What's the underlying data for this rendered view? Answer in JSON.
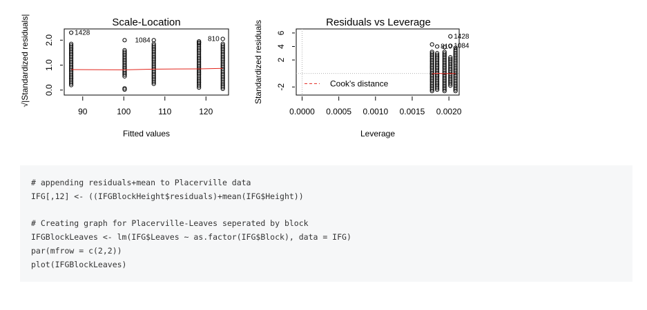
{
  "chart_data": [
    {
      "type": "scatter",
      "title": "Scale-Location",
      "xlabel": "Fitted values",
      "ylabel": "√|Standardized residuals|",
      "xlim": [
        85.5,
        125.5
      ],
      "ylim": [
        -0.2,
        2.45
      ],
      "x_ticks": [
        90,
        100,
        110,
        120
      ],
      "y_ticks": [
        0.0,
        1.0,
        2.0
      ],
      "y_tick_labels": [
        "0.0",
        "1.0",
        "2.0"
      ],
      "grid": false,
      "groups": [
        {
          "x": 87.2,
          "y_min": 0.2,
          "y_max": 1.85
        },
        {
          "x": 100.2,
          "y_min": 0.55,
          "y_max": 1.6
        },
        {
          "x": 107.3,
          "y_min": 0.25,
          "y_max": 1.85
        },
        {
          "x": 118.3,
          "y_min": 0.1,
          "y_max": 1.95
        },
        {
          "x": 124.1,
          "y_min": 0.05,
          "y_max": 1.85
        }
      ],
      "points": [
        {
          "x": 87.2,
          "y": 2.3,
          "label": "1428"
        },
        {
          "x": 100.2,
          "y": 2.0
        },
        {
          "x": 100.2,
          "y": 0.07
        },
        {
          "x": 100.2,
          "y": 0.02
        },
        {
          "x": 107.3,
          "y": 2.0,
          "label": "1084"
        },
        {
          "x": 118.3,
          "y": 1.9
        },
        {
          "x": 124.1,
          "y": 2.05,
          "label": "810"
        }
      ],
      "smoother": [
        [
          87.2,
          0.82
        ],
        [
          100.2,
          0.81
        ],
        [
          107.3,
          0.84
        ],
        [
          118.3,
          0.85
        ],
        [
          124.1,
          0.87
        ]
      ],
      "colors": {
        "points": "#000000",
        "smoother": "#e2231a"
      }
    },
    {
      "type": "scatter",
      "title": "Residuals vs Leverage",
      "xlabel": "Leverage",
      "ylabel": "Standardized residuals",
      "xlim": [
        -8e-05,
        0.00214
      ],
      "ylim": [
        -3.2,
        6.6
      ],
      "x_ticks": [
        0.0,
        0.0005,
        0.001,
        0.0015,
        0.002
      ],
      "x_tick_labels": [
        "0.0000",
        "0.0005",
        "0.0010",
        "0.0015",
        "0.0020"
      ],
      "y_ticks": [
        -2,
        2,
        4,
        6
      ],
      "y_tick_labels": [
        "-2",
        "2",
        "4",
        "6"
      ],
      "grid": false,
      "groups": [
        {
          "x": 0.00177,
          "y_min": -2.6,
          "y_max": 3.2
        },
        {
          "x": 0.00184,
          "y_min": -2.4,
          "y_max": 3.0
        },
        {
          "x": 0.00194,
          "y_min": -2.6,
          "y_max": 3.2
        },
        {
          "x": 0.00202,
          "y_min": -1.8,
          "y_max": 2.4
        },
        {
          "x": 0.00209,
          "y_min": -2.6,
          "y_max": 3.5
        }
      ],
      "points": [
        {
          "x": 0.00177,
          "y": 4.3
        },
        {
          "x": 0.00184,
          "y": 4.0,
          "label": "810"
        },
        {
          "x": 0.00194,
          "y": 3.9
        },
        {
          "x": 0.00202,
          "y": 5.5,
          "label": "1428"
        },
        {
          "x": 0.00202,
          "y": 4.1,
          "label": "1084"
        },
        {
          "x": 0.00209,
          "y": 3.8
        }
      ],
      "zero_line": 0,
      "smoother": [
        [
          0.00177,
          -0.05
        ],
        [
          0.00184,
          0.02
        ],
        [
          0.00194,
          -0.03
        ],
        [
          0.00202,
          0.0
        ],
        [
          0.00209,
          -0.02
        ]
      ],
      "legend": {
        "label": "Cook's distance",
        "position": "bottom-left"
      },
      "colors": {
        "points": "#000000",
        "smoother": "#e2231a",
        "cooks": "#e2231a",
        "reference": "#b0b0b0"
      }
    }
  ],
  "code_block": {
    "lines": [
      "# appending residuals+mean to Placerville data",
      "IFG[,12] <- ((IFGBlockHeight$residuals)+mean(IFG$Height))",
      "",
      "# Creating graph for Placerville-Leaves seperated by block",
      "IFGBlockLeaves <- lm(IFG$Leaves ~ as.factor(IFG$Block), data = IFG)",
      "par(mfrow = c(2,2))",
      "plot(IFGBlockLeaves)"
    ]
  }
}
